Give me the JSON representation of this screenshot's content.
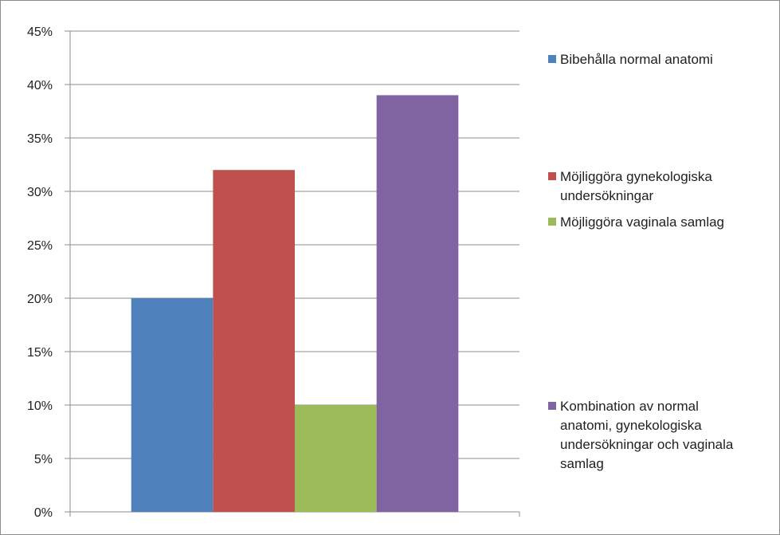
{
  "chart_data": {
    "type": "bar",
    "categories": [
      "Bibehålla normal anatomi",
      "Möjliggöra gynekologiska undersökningar",
      "Möjliggöra vaginala samlag",
      "Kombination av normal anatomi, gynekologiska undersökningar och vaginala samlag"
    ],
    "values": [
      20,
      32,
      10,
      39
    ],
    "colors": [
      "#4F81BD",
      "#C0504D",
      "#9BBB59",
      "#8064A2"
    ],
    "ylim": [
      0,
      45
    ],
    "yticks": [
      "0%",
      "5%",
      "10%",
      "15%",
      "20%",
      "25%",
      "30%",
      "35%",
      "40%",
      "45%"
    ],
    "grid": true,
    "legend_position": "right",
    "legend": [
      "Bibehålla normal anatomi",
      "Möjliggöra gynekologiska\nundersökningar",
      "Möjliggöra vaginala samlag",
      "Kombination av normal\nanatomi, gynekologiska\nundersökningar och vaginala\nsamlag"
    ]
  }
}
